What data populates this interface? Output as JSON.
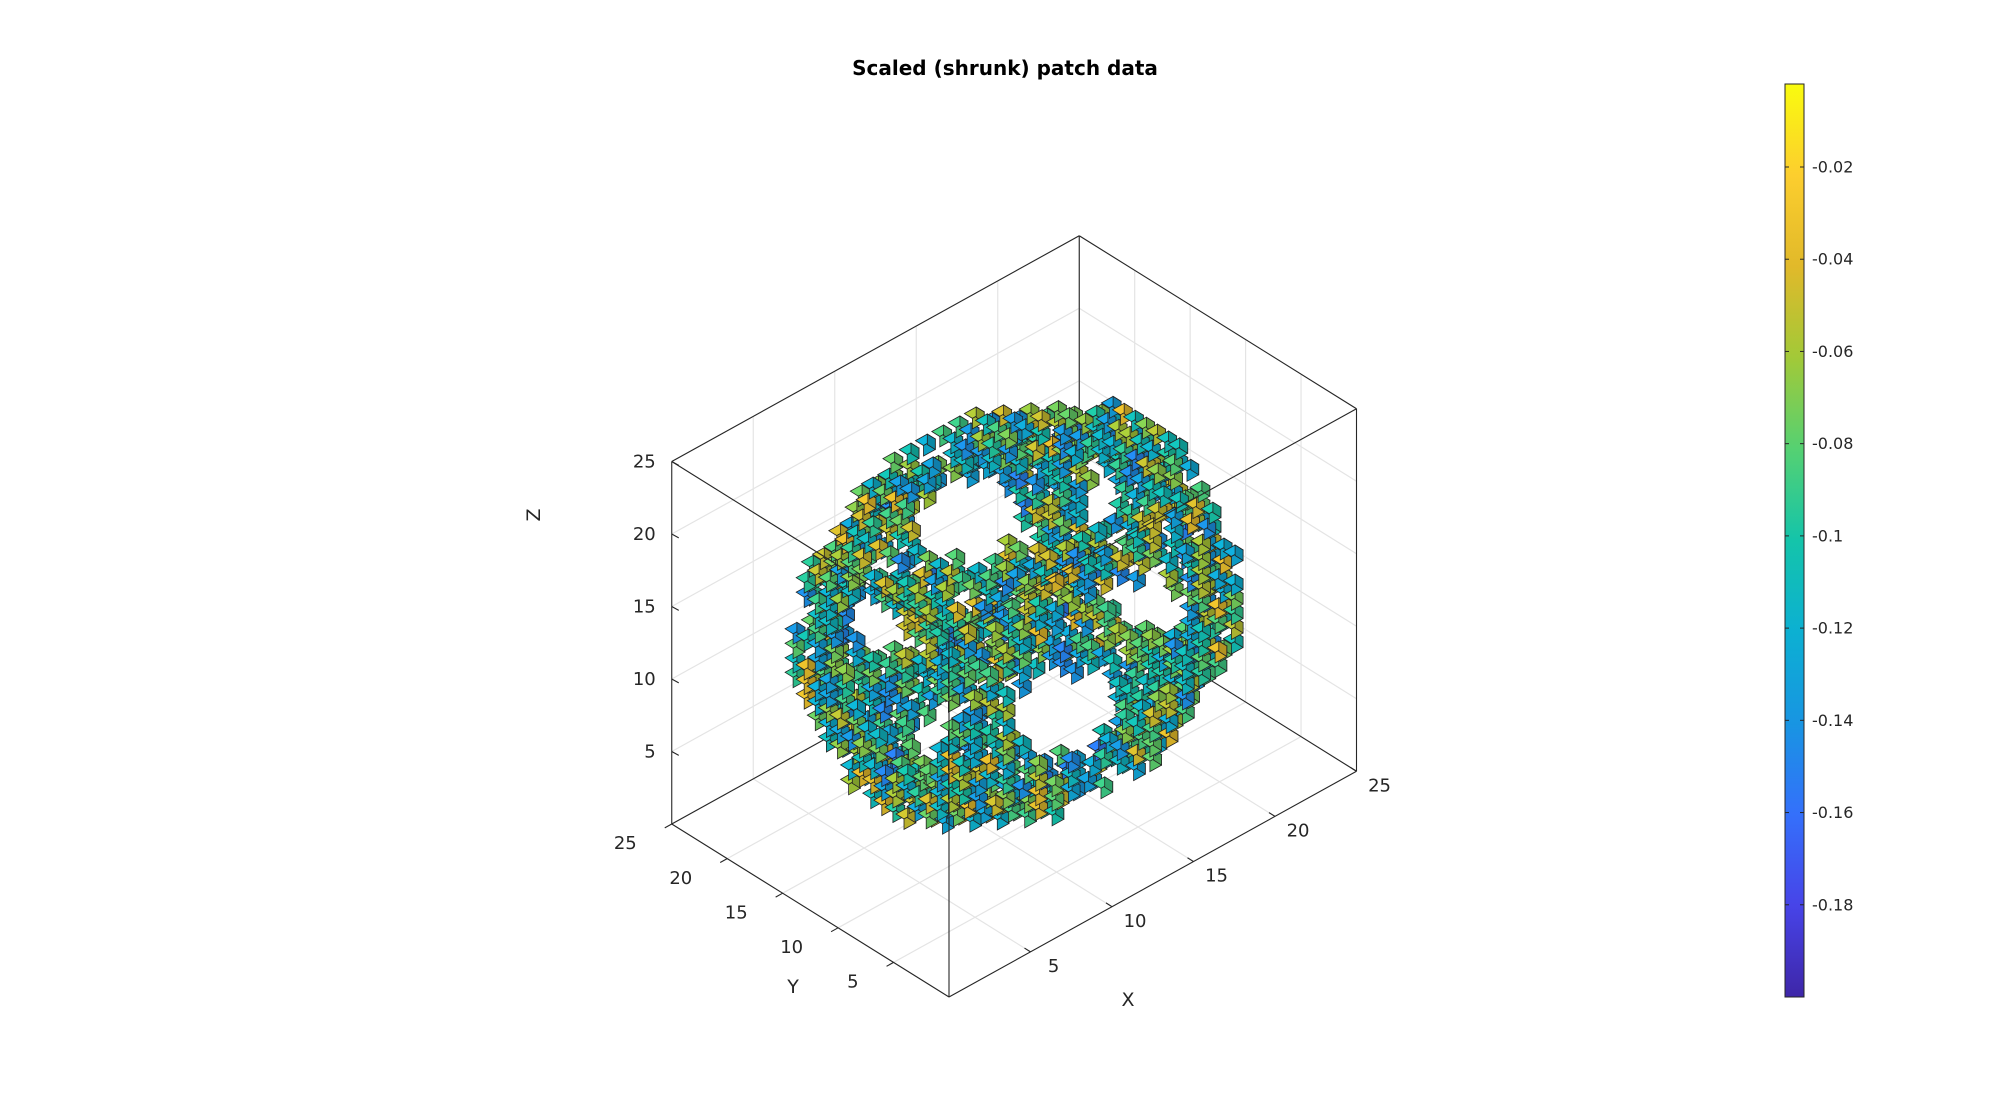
{
  "chart_data": {
    "type": "scatter",
    "plot_kind": "3d-voxel-patch",
    "title": "Scaled (shrunk) patch data",
    "xlabel": "X",
    "ylabel": "Y",
    "zlabel": "Z",
    "xlim": [
      0,
      25
    ],
    "ylim": [
      0,
      25
    ],
    "zlim": [
      0,
      25
    ],
    "x_ticks": [
      5,
      10,
      15,
      20,
      25
    ],
    "y_ticks": [
      5,
      10,
      15,
      20,
      25
    ],
    "z_ticks": [
      5,
      10,
      15,
      20,
      25
    ],
    "grid": true,
    "box": true,
    "colormap": "parula",
    "colorbar": {
      "placement": "right",
      "clim": [
        -0.2,
        -0.002
      ],
      "ticks": [
        -0.02,
        -0.04,
        -0.06,
        -0.08,
        -0.1,
        -0.12,
        -0.14,
        -0.16,
        -0.18
      ],
      "tick_labels": [
        "-0.02",
        "-0.04",
        "-0.06",
        "-0.08",
        "-0.1",
        "-0.12",
        "-0.14",
        "-0.16",
        "-0.18"
      ]
    },
    "shape": {
      "description_hint": "lattice",
      "center": [
        12.5,
        12.5,
        12.5
      ],
      "outer_half_extent": 8.5,
      "inner_half_extent": 6.5,
      "hole_radius": 5.2,
      "voxel_size": 1,
      "shrink_factor": 0.72
    },
    "colors": {
      "edge": "#222222",
      "axis": "#262626",
      "grid": "#e4e4e4"
    }
  }
}
